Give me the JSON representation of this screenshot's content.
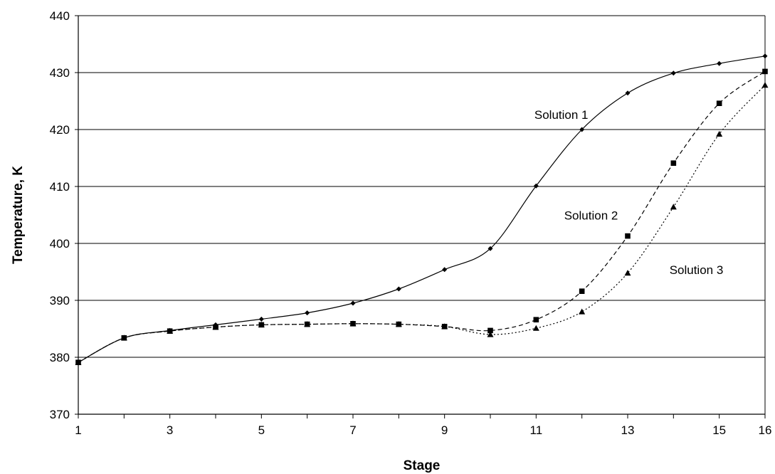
{
  "chart_data": {
    "type": "line",
    "title": "",
    "xlabel": "Stage",
    "ylabel": "Temperature, K",
    "xlim": [
      1,
      16
    ],
    "ylim": [
      370,
      440
    ],
    "x_ticks": [
      1,
      3,
      5,
      7,
      9,
      11,
      13,
      15,
      16
    ],
    "y_ticks": [
      370,
      380,
      390,
      400,
      410,
      420,
      430,
      440
    ],
    "grid": "horizontal",
    "legend": "none",
    "x": [
      1,
      2,
      3,
      4,
      5,
      6,
      7,
      8,
      9,
      10,
      11,
      12,
      13,
      14,
      15,
      16
    ],
    "series": [
      {
        "values": [
          379.1,
          383.4,
          384.7,
          385.7,
          386.7,
          387.8,
          389.5,
          392.0,
          395.4,
          399.1,
          410.1,
          420.0,
          426.4,
          429.9,
          431.6,
          432.9
        ],
        "marker": "diamond",
        "dash": "solid",
        "color": "#000000"
      },
      {
        "values": [
          379.1,
          383.4,
          384.6,
          385.3,
          385.7,
          385.8,
          385.9,
          385.8,
          385.4,
          384.7,
          386.6,
          391.6,
          401.3,
          414.1,
          424.6,
          430.2
        ],
        "marker": "square",
        "dash": "dashed",
        "color": "#000000"
      },
      {
        "values": [
          379.1,
          383.4,
          384.6,
          385.3,
          385.7,
          385.8,
          385.9,
          385.8,
          385.4,
          384.0,
          385.1,
          388.0,
          394.8,
          406.4,
          419.2,
          427.8
        ],
        "marker": "triangle",
        "dash": "dotted",
        "color": "#000000"
      }
    ],
    "annotations": [
      {
        "text": "Solution 1",
        "x": 11.55,
        "y": 421.9
      },
      {
        "text": "Solution 2",
        "x": 12.2,
        "y": 404.2
      },
      {
        "text": "Solution 3",
        "x": 14.5,
        "y": 394.6
      }
    ]
  }
}
